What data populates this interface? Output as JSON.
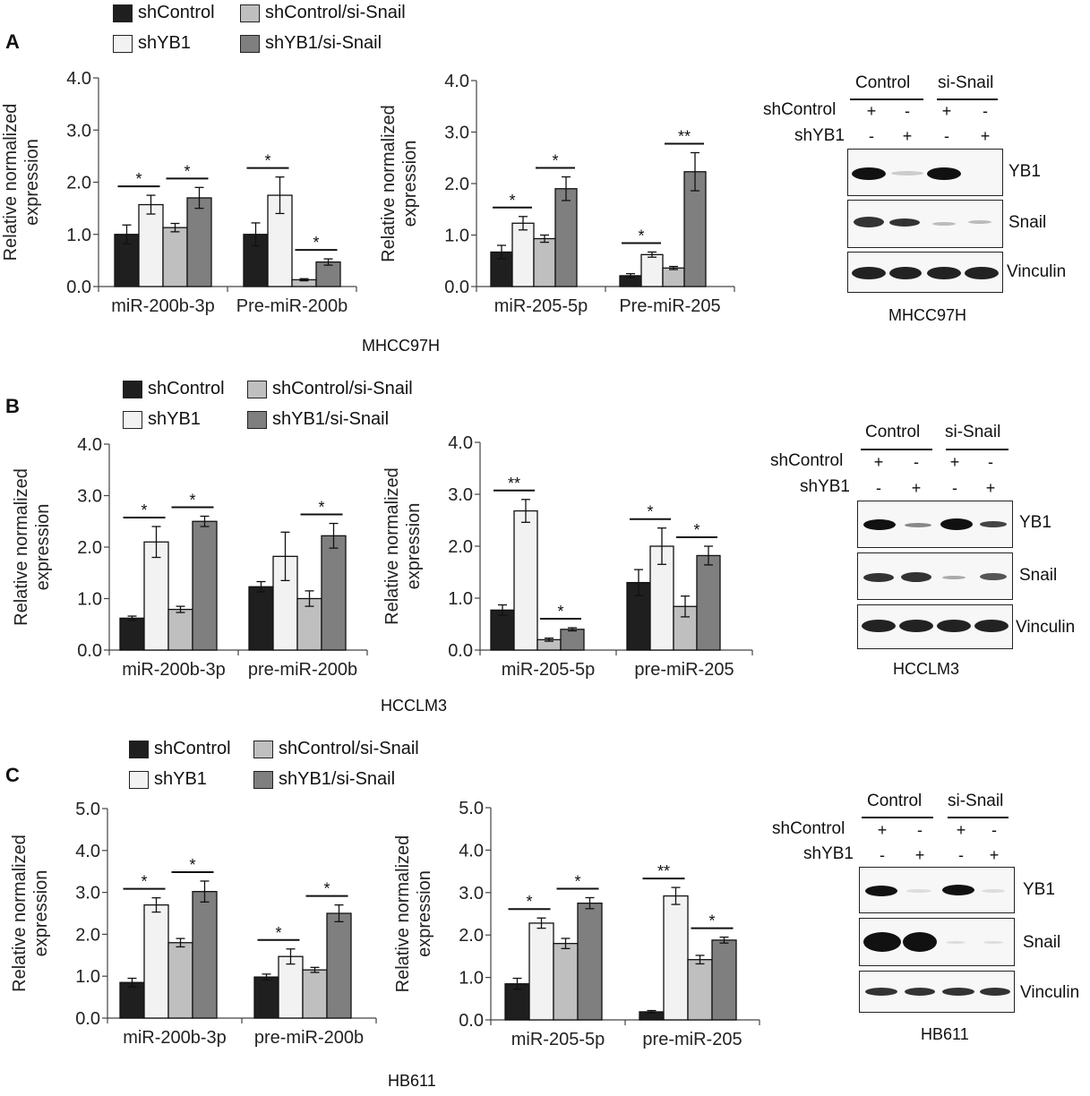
{
  "colors": {
    "shControl": "#1f1f1f",
    "shYB1": "#f2f2f2",
    "shControl_siSnail": "#bfbfbf",
    "shYB1_siSnail": "#7f7f7f"
  },
  "legend_labels": [
    "shControl",
    "shYB1",
    "shControl/si-Snail",
    "shYB1/si-Snail"
  ],
  "panels": [
    {
      "letter": "A",
      "cell_line": "MHCC97H",
      "chart_data": [
        {
          "type": "bar",
          "ylabel": "Relative normalized expression",
          "ylim": [
            0,
            4
          ],
          "yticks": [
            "0.0",
            "1.0",
            "2.0",
            "3.0",
            "4.0"
          ],
          "categories": [
            "miR-200b-3p",
            "Pre-miR-200b"
          ],
          "series": [
            {
              "name": "shControl",
              "values": [
                1.0,
                1.0
              ],
              "errors": [
                0.18,
                0.22
              ]
            },
            {
              "name": "shYB1",
              "values": [
                1.57,
                1.75
              ],
              "errors": [
                0.18,
                0.35
              ]
            },
            {
              "name": "shControl/si-Snail",
              "values": [
                1.13,
                0.13
              ],
              "errors": [
                0.08,
                0.02
              ]
            },
            {
              "name": "shYB1/si-Snail",
              "values": [
                1.7,
                0.47
              ],
              "errors": [
                0.2,
                0.06
              ]
            }
          ],
          "significance": [
            {
              "category": 0,
              "from": 0,
              "to": 1,
              "label": "*"
            },
            {
              "category": 0,
              "from": 2,
              "to": 3,
              "label": "*"
            },
            {
              "category": 1,
              "from": 0,
              "to": 1,
              "label": "*"
            },
            {
              "category": 1,
              "from": 2,
              "to": 3,
              "label": "*"
            }
          ]
        },
        {
          "type": "bar",
          "ylabel": "Relative normalized expression",
          "ylim": [
            0,
            4
          ],
          "yticks": [
            "0.0",
            "1.0",
            "2.0",
            "3.0",
            "4.0"
          ],
          "categories": [
            "miR-205-5p",
            "Pre-miR-205"
          ],
          "series": [
            {
              "name": "shControl",
              "values": [
                0.67,
                0.21
              ],
              "errors": [
                0.13,
                0.04
              ]
            },
            {
              "name": "shYB1",
              "values": [
                1.23,
                0.62
              ],
              "errors": [
                0.13,
                0.05
              ]
            },
            {
              "name": "shControl/si-Snail",
              "values": [
                0.93,
                0.36
              ],
              "errors": [
                0.07,
                0.03
              ]
            },
            {
              "name": "shYB1/si-Snail",
              "values": [
                1.9,
                2.23
              ],
              "errors": [
                0.23,
                0.37
              ]
            }
          ],
          "significance": [
            {
              "category": 0,
              "from": 0,
              "to": 1,
              "label": "*"
            },
            {
              "category": 0,
              "from": 2,
              "to": 3,
              "label": "*"
            },
            {
              "category": 1,
              "from": 0,
              "to": 1,
              "label": "*"
            },
            {
              "category": 1,
              "from": 2,
              "to": 3,
              "label": "**"
            }
          ]
        }
      ]
    },
    {
      "letter": "B",
      "cell_line": "HCCLM3",
      "chart_data": [
        {
          "type": "bar",
          "ylabel": "Relative normalized expression",
          "ylim": [
            0,
            4
          ],
          "yticks": [
            "0.0",
            "1.0",
            "2.0",
            "3.0",
            "4.0"
          ],
          "categories": [
            "miR-200b-3p",
            "pre-miR-200b"
          ],
          "series": [
            {
              "name": "shControl",
              "values": [
                0.62,
                1.23
              ],
              "errors": [
                0.04,
                0.1
              ]
            },
            {
              "name": "shYB1",
              "values": [
                2.1,
                1.82
              ],
              "errors": [
                0.3,
                0.47
              ]
            },
            {
              "name": "shControl/si-Snail",
              "values": [
                0.79,
                1.0
              ],
              "errors": [
                0.06,
                0.15
              ]
            },
            {
              "name": "shYB1/si-Snail",
              "values": [
                2.5,
                2.22
              ],
              "errors": [
                0.1,
                0.24
              ]
            }
          ],
          "significance": [
            {
              "category": 0,
              "from": 0,
              "to": 1,
              "label": "*"
            },
            {
              "category": 0,
              "from": 2,
              "to": 3,
              "label": "*"
            },
            {
              "category": 1,
              "from": 2,
              "to": 3,
              "label": "*"
            }
          ]
        },
        {
          "type": "bar",
          "ylabel": "Relative normalized expression",
          "ylim": [
            0,
            4
          ],
          "yticks": [
            "0.0",
            "1.0",
            "2.0",
            "3.0",
            "4.0"
          ],
          "categories": [
            "miR-205-5p",
            "pre-miR-205"
          ],
          "series": [
            {
              "name": "shControl",
              "values": [
                0.77,
                1.3
              ],
              "errors": [
                0.1,
                0.25
              ]
            },
            {
              "name": "shYB1",
              "values": [
                2.68,
                2.0
              ],
              "errors": [
                0.22,
                0.35
              ]
            },
            {
              "name": "shControl/si-Snail",
              "values": [
                0.2,
                0.84
              ],
              "errors": [
                0.03,
                0.2
              ]
            },
            {
              "name": "shYB1/si-Snail",
              "values": [
                0.4,
                1.82
              ],
              "errors": [
                0.03,
                0.18
              ]
            }
          ],
          "significance": [
            {
              "category": 0,
              "from": 0,
              "to": 1,
              "label": "**"
            },
            {
              "category": 0,
              "from": 2,
              "to": 3,
              "label": "*"
            },
            {
              "category": 1,
              "from": 0,
              "to": 1,
              "label": "*"
            },
            {
              "category": 1,
              "from": 2,
              "to": 3,
              "label": "*"
            }
          ]
        }
      ]
    },
    {
      "letter": "C",
      "cell_line": "HB611",
      "chart_data": [
        {
          "type": "bar",
          "ylabel": "Relative normalized expression",
          "ylim": [
            0,
            5
          ],
          "yticks": [
            "0.0",
            "1.0",
            "2.0",
            "3.0",
            "4.0",
            "5.0"
          ],
          "categories": [
            "miR-200b-3p",
            "pre-miR-200b"
          ],
          "series": [
            {
              "name": "shControl",
              "values": [
                0.85,
                0.98
              ],
              "errors": [
                0.1,
                0.07
              ]
            },
            {
              "name": "shYB1",
              "values": [
                2.7,
                1.47
              ],
              "errors": [
                0.17,
                0.18
              ]
            },
            {
              "name": "shControl/si-Snail",
              "values": [
                1.8,
                1.15
              ],
              "errors": [
                0.1,
                0.06
              ]
            },
            {
              "name": "shYB1/si-Snail",
              "values": [
                3.02,
                2.5
              ],
              "errors": [
                0.25,
                0.2
              ]
            }
          ],
          "significance": [
            {
              "category": 0,
              "from": 0,
              "to": 1,
              "label": "*"
            },
            {
              "category": 0,
              "from": 2,
              "to": 3,
              "label": "*"
            },
            {
              "category": 1,
              "from": 0,
              "to": 1,
              "label": "*"
            },
            {
              "category": 1,
              "from": 2,
              "to": 3,
              "label": "*"
            }
          ]
        },
        {
          "type": "bar",
          "ylabel": "Relative normalized expression",
          "ylim": [
            0,
            5
          ],
          "yticks": [
            "0.0",
            "1.0",
            "2.0",
            "3.0",
            "4.0",
            "5.0"
          ],
          "categories": [
            "miR-205-5p",
            "pre-miR-205"
          ],
          "series": [
            {
              "name": "shControl",
              "values": [
                0.85,
                0.19
              ],
              "errors": [
                0.13,
                0.03
              ]
            },
            {
              "name": "shYB1",
              "values": [
                2.28,
                2.92
              ],
              "errors": [
                0.12,
                0.2
              ]
            },
            {
              "name": "shControl/si-Snail",
              "values": [
                1.8,
                1.42
              ],
              "errors": [
                0.12,
                0.1
              ]
            },
            {
              "name": "shYB1/si-Snail",
              "values": [
                2.75,
                1.88
              ],
              "errors": [
                0.13,
                0.07
              ]
            }
          ],
          "significance": [
            {
              "category": 0,
              "from": 0,
              "to": 1,
              "label": "*"
            },
            {
              "category": 0,
              "from": 2,
              "to": 3,
              "label": "*"
            },
            {
              "category": 1,
              "from": 0,
              "to": 1,
              "label": "**"
            },
            {
              "category": 1,
              "from": 2,
              "to": 3,
              "label": "*"
            }
          ]
        }
      ]
    }
  ],
  "western_blots": [
    {
      "group_labels": [
        "Control",
        "si-Snail"
      ],
      "row_labels": [
        "shControl",
        "shYB1"
      ],
      "shControl_signs": [
        "+",
        "-",
        "+",
        "-"
      ],
      "shYB1_signs": [
        "-",
        "+",
        "-",
        "+"
      ],
      "protein_labels": [
        "YB1",
        "Snail",
        "Vinculin"
      ],
      "cell_line": "MHCC97H"
    },
    {
      "group_labels": [
        "Control",
        "si-Snail"
      ],
      "row_labels": [
        "shControl",
        "shYB1"
      ],
      "shControl_signs": [
        "+",
        "-",
        "+",
        "-"
      ],
      "shYB1_signs": [
        "-",
        "+",
        "-",
        "+"
      ],
      "protein_labels": [
        "YB1",
        "Snail",
        "Vinculin"
      ],
      "cell_line": "HCCLM3"
    },
    {
      "group_labels": [
        "Control",
        "si-Snail"
      ],
      "row_labels": [
        "shControl",
        "shYB1"
      ],
      "shControl_signs": [
        "+",
        "-",
        "+",
        "-"
      ],
      "shYB1_signs": [
        "-",
        "+",
        "-",
        "+"
      ],
      "protein_labels": [
        "YB1",
        "Snail",
        "Vinculin"
      ],
      "cell_line": "HB611"
    }
  ]
}
